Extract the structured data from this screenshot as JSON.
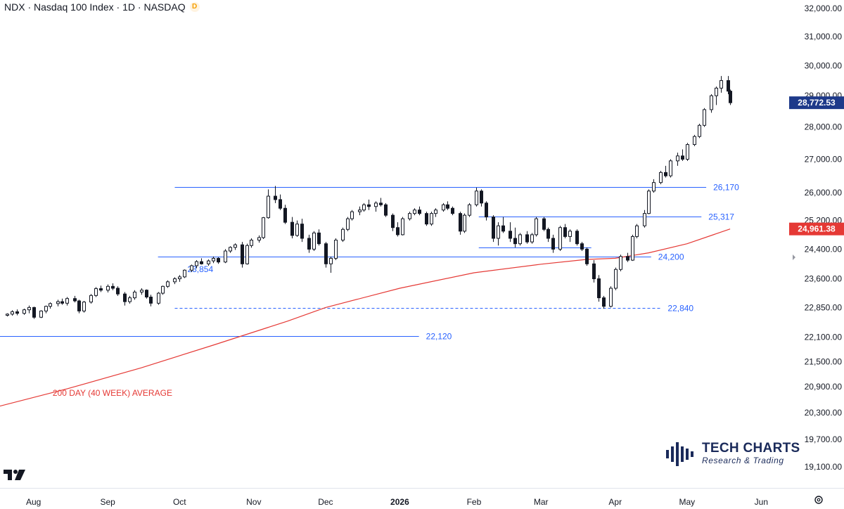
{
  "header": {
    "symbol": "NDX",
    "name": "Nasdaq 100 Index",
    "interval": "1D",
    "exchange": "NASDAQ",
    "badge": "D"
  },
  "brand": {
    "name": "TECH CHARTS",
    "tagline": "Research & Trading",
    "logo_icon": "bar-signal-logo-icon"
  },
  "colors": {
    "level": "#2962ff",
    "ma": "#e53935",
    "candle": "#131722",
    "last_price_label": "#1e3a8a",
    "ma_label": "#e53935"
  },
  "chart_data": {
    "type": "candlestick",
    "title": "NDX · Nasdaq 100 Index · 1D · NASDAQ",
    "x_range": [
      "2025-07-18",
      "2026-06-10"
    ],
    "x_tick_labels": [
      {
        "date": "2025-08-01",
        "label": "Aug"
      },
      {
        "date": "2025-09-01",
        "label": "Sep"
      },
      {
        "date": "2025-10-01",
        "label": "Oct"
      },
      {
        "date": "2025-11-01",
        "label": "Nov"
      },
      {
        "date": "2025-12-01",
        "label": "Dec"
      },
      {
        "date": "2026-01-01",
        "label": "2026"
      },
      {
        "date": "2026-02-01",
        "label": "Feb"
      },
      {
        "date": "2026-03-01",
        "label": "Mar"
      },
      {
        "date": "2026-04-01",
        "label": "Apr"
      },
      {
        "date": "2026-05-01",
        "label": "May"
      },
      {
        "date": "2026-06-01",
        "label": "Jun"
      }
    ],
    "y_ticks": [
      32000,
      31000,
      30000,
      29000,
      28000,
      27000,
      26000,
      25200,
      24400,
      23600,
      22850,
      22100,
      21500,
      20900,
      20300,
      19700,
      19100
    ],
    "y_tick_labels": [
      "32,000.00",
      "31,000.00",
      "30,000.00",
      "29,000.00",
      "28,000.00",
      "27,000.00",
      "26,000.00",
      "25,200.00",
      "24,400.00",
      "23,600.00",
      "22,850.00",
      "22,100.00",
      "21,500.00",
      "20,900.00",
      "20,300.00",
      "19,700.00",
      "19,100.00"
    ],
    "y_scale": "log",
    "y_range": [
      18650,
      32300
    ],
    "last_price": {
      "value": 28772.53,
      "label": "28,772.53"
    },
    "ma_last": {
      "value": 24961.38,
      "label": "24,961.38"
    },
    "levels": [
      {
        "value": 26170,
        "label": "26,170",
        "style": "solid",
        "from": "2025-09-29",
        "to": "2026-05-09"
      },
      {
        "value": 25317,
        "label": "25,317",
        "style": "solid",
        "from": "2026-02-03",
        "to": "2026-05-07"
      },
      {
        "value": 24450,
        "label": "",
        "style": "solid",
        "from": "2026-02-03",
        "to": "2026-03-22"
      },
      {
        "value": 24200,
        "label": "24,200",
        "style": "solid",
        "from": "2025-09-22",
        "to": "2026-04-16"
      },
      {
        "value": 22840,
        "label": "22,840",
        "style": "dashed",
        "from": "2025-09-29",
        "to": "2026-04-20"
      },
      {
        "value": 22120,
        "label": "22,120",
        "style": "solid",
        "from": "2025-07-18",
        "to": "2026-01-09"
      }
    ],
    "level_labels_extra": [
      {
        "label": "23,854",
        "value": 23854,
        "date": "2025-09-29"
      }
    ],
    "moving_average": {
      "name": "200 DAY (40 WEEK) AVERAGE",
      "points": [
        [
          "2025-07-18",
          20450
        ],
        [
          "2025-08-15",
          20850
        ],
        [
          "2025-09-15",
          21350
        ],
        [
          "2025-10-15",
          21900
        ],
        [
          "2025-11-15",
          22500
        ],
        [
          "2025-12-01",
          22850
        ],
        [
          "2026-01-01",
          23350
        ],
        [
          "2026-02-01",
          23760
        ],
        [
          "2026-03-01",
          23990
        ],
        [
          "2026-03-20",
          24120
        ],
        [
          "2026-04-01",
          24150
        ],
        [
          "2026-04-15",
          24300
        ],
        [
          "2026-05-01",
          24550
        ],
        [
          "2026-05-19",
          24961
        ]
      ]
    },
    "candles": [
      [
        "2025-07-21",
        22650,
        22700,
        22620,
        22680
      ],
      [
        "2025-07-23",
        22680,
        22780,
        22640,
        22740
      ],
      [
        "2025-07-25",
        22740,
        22800,
        22650,
        22700
      ],
      [
        "2025-07-28",
        22700,
        22820,
        22660,
        22790
      ],
      [
        "2025-07-30",
        22790,
        22900,
        22700,
        22850
      ],
      [
        "2025-08-01",
        22850,
        22870,
        22560,
        22600
      ],
      [
        "2025-08-04",
        22600,
        22780,
        22580,
        22760
      ],
      [
        "2025-08-06",
        22760,
        22900,
        22700,
        22880
      ],
      [
        "2025-08-08",
        22880,
        22980,
        22820,
        22950
      ],
      [
        "2025-08-11",
        22950,
        23050,
        22880,
        23000
      ],
      [
        "2025-08-13",
        23000,
        23080,
        22920,
        22960
      ],
      [
        "2025-08-15",
        22960,
        23120,
        22900,
        23080
      ],
      [
        "2025-08-18",
        23080,
        23150,
        22980,
        23020
      ],
      [
        "2025-08-20",
        23020,
        23050,
        22700,
        22760
      ],
      [
        "2025-08-22",
        22760,
        23020,
        22720,
        22990
      ],
      [
        "2025-08-25",
        22990,
        23200,
        22950,
        23160
      ],
      [
        "2025-08-27",
        23160,
        23380,
        23120,
        23340
      ],
      [
        "2025-08-29",
        23340,
        23420,
        23250,
        23300
      ],
      [
        "2025-09-01",
        23300,
        23450,
        23240,
        23400
      ],
      [
        "2025-09-03",
        23400,
        23480,
        23300,
        23350
      ],
      [
        "2025-09-05",
        23350,
        23400,
        23150,
        23200
      ],
      [
        "2025-09-08",
        23200,
        23250,
        22900,
        23000
      ],
      [
        "2025-09-10",
        23000,
        23150,
        22950,
        23100
      ],
      [
        "2025-09-12",
        23100,
        23300,
        23050,
        23250
      ],
      [
        "2025-09-15",
        23250,
        23350,
        23180,
        23300
      ],
      [
        "2025-09-17",
        23300,
        23320,
        23080,
        23120
      ],
      [
        "2025-09-19",
        23120,
        23180,
        22880,
        22960
      ],
      [
        "2025-09-22",
        22960,
        23250,
        22920,
        23220
      ],
      [
        "2025-09-24",
        23220,
        23420,
        23180,
        23400
      ],
      [
        "2025-09-26",
        23400,
        23560,
        23360,
        23520
      ],
      [
        "2025-09-29",
        23520,
        23640,
        23460,
        23600
      ],
      [
        "2025-10-01",
        23600,
        23700,
        23520,
        23650
      ],
      [
        "2025-10-03",
        23650,
        23850,
        23620,
        23830
      ],
      [
        "2025-10-06",
        23830,
        23980,
        23780,
        23950
      ],
      [
        "2025-10-08",
        23950,
        24100,
        23880,
        24060
      ],
      [
        "2025-10-10",
        24060,
        24150,
        23980,
        24000
      ],
      [
        "2025-10-13",
        24000,
        24120,
        23950,
        24080
      ],
      [
        "2025-10-15",
        24080,
        24200,
        24020,
        24150
      ],
      [
        "2025-10-17",
        24150,
        24180,
        24000,
        24050
      ],
      [
        "2025-10-20",
        24050,
        24400,
        24020,
        24350
      ],
      [
        "2025-10-22",
        24350,
        24480,
        24300,
        24450
      ],
      [
        "2025-10-24",
        24450,
        24560,
        24380,
        24520
      ],
      [
        "2025-10-27",
        24520,
        24600,
        23900,
        24000
      ],
      [
        "2025-10-29",
        24000,
        24550,
        23980,
        24500
      ],
      [
        "2025-10-31",
        24500,
        24700,
        24440,
        24650
      ],
      [
        "2025-11-03",
        24650,
        24780,
        24580,
        24720
      ],
      [
        "2025-11-05",
        24720,
        25300,
        24680,
        25280
      ],
      [
        "2025-11-07",
        25280,
        26100,
        25250,
        25900
      ],
      [
        "2025-11-10",
        25900,
        26200,
        25700,
        25800
      ],
      [
        "2025-11-12",
        25800,
        25950,
        25500,
        25550
      ],
      [
        "2025-11-14",
        25550,
        25650,
        25100,
        25150
      ],
      [
        "2025-11-17",
        25150,
        25300,
        24700,
        24780
      ],
      [
        "2025-11-19",
        24780,
        25200,
        24740,
        25100
      ],
      [
        "2025-11-21",
        25100,
        25250,
        24600,
        24700
      ],
      [
        "2025-11-24",
        24700,
        24800,
        24300,
        24400
      ],
      [
        "2025-11-26",
        24400,
        24900,
        24350,
        24850
      ],
      [
        "2025-11-28",
        24850,
        24950,
        24500,
        24550
      ],
      [
        "2025-12-01",
        24550,
        24600,
        23900,
        24000
      ],
      [
        "2025-12-03",
        24000,
        24200,
        23760,
        24150
      ],
      [
        "2025-12-05",
        24150,
        24700,
        24100,
        24650
      ],
      [
        "2025-12-08",
        24650,
        25000,
        24600,
        24950
      ],
      [
        "2025-12-10",
        24950,
        25300,
        24900,
        25250
      ],
      [
        "2025-12-12",
        25250,
        25500,
        25200,
        25450
      ],
      [
        "2025-12-15",
        25450,
        25600,
        25350,
        25500
      ],
      [
        "2025-12-17",
        25500,
        25700,
        25450,
        25650
      ],
      [
        "2025-12-19",
        25650,
        25800,
        25500,
        25600
      ],
      [
        "2025-12-22",
        25600,
        25750,
        25450,
        25700
      ],
      [
        "2025-12-24",
        25700,
        25850,
        25600,
        25650
      ],
      [
        "2025-12-26",
        25650,
        25700,
        25300,
        25350
      ],
      [
        "2025-12-29",
        25350,
        25400,
        24900,
        25000
      ],
      [
        "2025-12-31",
        25000,
        25150,
        24750,
        24800
      ],
      [
        "2026-01-02",
        24800,
        25300,
        24780,
        25250
      ],
      [
        "2026-01-05",
        25250,
        25450,
        25200,
        25400
      ],
      [
        "2026-01-07",
        25400,
        25550,
        25350,
        25500
      ],
      [
        "2026-01-09",
        25500,
        25600,
        25350,
        25400
      ],
      [
        "2026-01-12",
        25400,
        25450,
        25050,
        25100
      ],
      [
        "2026-01-14",
        25100,
        25450,
        25050,
        25400
      ],
      [
        "2026-01-16",
        25400,
        25550,
        25300,
        25500
      ],
      [
        "2026-01-19",
        25500,
        25700,
        25450,
        25650
      ],
      [
        "2026-01-21",
        25650,
        25750,
        25500,
        25550
      ],
      [
        "2026-01-23",
        25550,
        25600,
        25350,
        25400
      ],
      [
        "2026-01-26",
        25400,
        25450,
        24800,
        24900
      ],
      [
        "2026-01-28",
        24900,
        25400,
        24850,
        25350
      ],
      [
        "2026-01-30",
        25350,
        25700,
        25300,
        25650
      ],
      [
        "2026-02-02",
        25650,
        26150,
        25600,
        26050
      ],
      [
        "2026-02-04",
        26050,
        26100,
        25600,
        25700
      ],
      [
        "2026-02-06",
        25700,
        25750,
        25200,
        25300
      ],
      [
        "2026-02-09",
        25300,
        25350,
        24600,
        24700
      ],
      [
        "2026-02-11",
        24700,
        25150,
        24500,
        25050
      ],
      [
        "2026-02-13",
        25050,
        25300,
        24850,
        24900
      ],
      [
        "2026-02-16",
        24900,
        25150,
        24600,
        24700
      ],
      [
        "2026-02-18",
        24700,
        25000,
        24450,
        24550
      ],
      [
        "2026-02-20",
        24550,
        24850,
        24500,
        24800
      ],
      [
        "2026-02-23",
        24800,
        24900,
        24550,
        24600
      ],
      [
        "2026-02-25",
        24600,
        24850,
        24550,
        24800
      ],
      [
        "2026-02-27",
        24800,
        25300,
        24750,
        25250
      ],
      [
        "2026-03-02",
        25250,
        25300,
        24900,
        24950
      ],
      [
        "2026-03-04",
        24950,
        25000,
        24600,
        24700
      ],
      [
        "2026-03-06",
        24700,
        24800,
        24300,
        24400
      ],
      [
        "2026-03-09",
        24400,
        25050,
        24350,
        25000
      ],
      [
        "2026-03-11",
        25000,
        25100,
        24700,
        24750
      ],
      [
        "2026-03-13",
        24750,
        24950,
        24600,
        24900
      ],
      [
        "2026-03-16",
        24900,
        24950,
        24500,
        24550
      ],
      [
        "2026-03-18",
        24550,
        24600,
        24350,
        24400
      ],
      [
        "2026-03-20",
        24400,
        24450,
        23950,
        24000
      ],
      [
        "2026-03-23",
        24000,
        24100,
        23500,
        23600
      ],
      [
        "2026-03-25",
        23600,
        23700,
        23000,
        23100
      ],
      [
        "2026-03-27",
        23100,
        23150,
        22820,
        22880
      ],
      [
        "2026-03-30",
        22880,
        23400,
        22850,
        23350
      ],
      [
        "2026-04-01",
        23350,
        23900,
        23300,
        23850
      ],
      [
        "2026-04-03",
        23850,
        24250,
        23800,
        24200
      ],
      [
        "2026-04-06",
        24200,
        24300,
        24050,
        24100
      ],
      [
        "2026-04-08",
        24100,
        24800,
        24080,
        24750
      ],
      [
        "2026-04-10",
        24750,
        25100,
        24700,
        25050
      ],
      [
        "2026-04-13",
        25050,
        25500,
        25000,
        25400
      ],
      [
        "2026-04-15",
        25400,
        26100,
        25380,
        26050
      ],
      [
        "2026-04-17",
        26050,
        26400,
        26000,
        26300
      ],
      [
        "2026-04-20",
        26300,
        26650,
        26250,
        26600
      ],
      [
        "2026-04-22",
        26600,
        26800,
        26450,
        26500
      ],
      [
        "2026-04-24",
        26500,
        27000,
        26450,
        26950
      ],
      [
        "2026-04-27",
        26950,
        27200,
        26800,
        27100
      ],
      [
        "2026-04-29",
        27100,
        27300,
        26950,
        27000
      ],
      [
        "2026-05-01",
        27000,
        27500,
        26950,
        27450
      ],
      [
        "2026-05-04",
        27450,
        27750,
        27400,
        27700
      ],
      [
        "2026-05-06",
        27700,
        28100,
        27650,
        28050
      ],
      [
        "2026-05-08",
        28050,
        28600,
        28000,
        28550
      ],
      [
        "2026-05-11",
        28550,
        29050,
        28450,
        29000
      ],
      [
        "2026-05-13",
        29000,
        29300,
        28700,
        29250
      ],
      [
        "2026-05-15",
        29250,
        29650,
        29100,
        29500
      ],
      [
        "2026-05-18",
        29500,
        29650,
        29050,
        29150
      ],
      [
        "2026-05-19",
        29150,
        29200,
        28700,
        28772.53
      ]
    ]
  }
}
